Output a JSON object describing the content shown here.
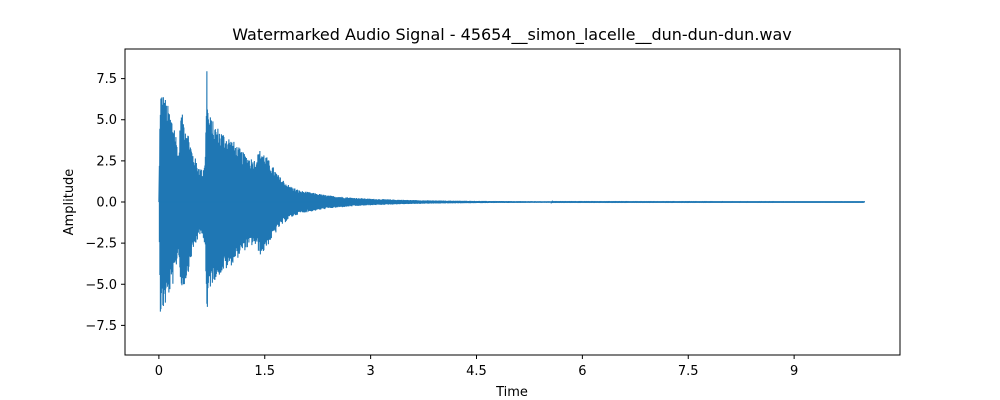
{
  "chart_data": {
    "type": "line",
    "title": "Watermarked Audio Signal - 45654__simon_lacelle__dun-dun-dun.wav",
    "xlabel": "Time",
    "ylabel": "Amplitude",
    "xlim": [
      -0.48,
      10.5
    ],
    "ylim": [
      -9.3,
      9.3
    ],
    "x_ticks": [
      0,
      1.5,
      3,
      4.5,
      6,
      7.5,
      9
    ],
    "x_tick_labels": [
      "0",
      "1.5",
      "3",
      "4.5",
      "6",
      "7.5",
      "9"
    ],
    "y_ticks": [
      -7.5,
      -5.0,
      -2.5,
      0.0,
      2.5,
      5.0,
      7.5
    ],
    "y_tick_labels": [
      "−7.5",
      "−5.0",
      "−2.5",
      "0.0",
      "2.5",
      "5.0",
      "7.5"
    ],
    "grid": false,
    "line_color": "#1f77b4",
    "duration": 10.0,
    "series": [
      {
        "values_kind": "envelope",
        "envelope_points": [
          [
            0.0,
            0.0
          ],
          [
            0.02,
            6.9
          ],
          [
            0.08,
            6.5
          ],
          [
            0.15,
            5.6
          ],
          [
            0.22,
            4.8
          ],
          [
            0.28,
            3.0
          ],
          [
            0.31,
            5.5
          ],
          [
            0.36,
            5.1
          ],
          [
            0.4,
            4.6
          ],
          [
            0.47,
            3.2
          ],
          [
            0.55,
            2.3
          ],
          [
            0.62,
            1.9
          ],
          [
            0.66,
            3.0
          ],
          [
            0.68,
            8.5
          ],
          [
            0.7,
            5.5
          ],
          [
            0.78,
            4.8
          ],
          [
            0.9,
            4.3
          ],
          [
            1.0,
            4.0
          ],
          [
            1.1,
            3.5
          ],
          [
            1.2,
            3.0
          ],
          [
            1.35,
            2.6
          ],
          [
            1.45,
            3.3
          ],
          [
            1.55,
            2.6
          ],
          [
            1.7,
            1.6
          ],
          [
            1.85,
            1.0
          ],
          [
            2.0,
            0.7
          ],
          [
            2.2,
            0.55
          ],
          [
            2.4,
            0.4
          ],
          [
            2.7,
            0.28
          ],
          [
            3.0,
            0.2
          ],
          [
            3.4,
            0.14
          ],
          [
            3.8,
            0.1
          ],
          [
            4.2,
            0.08
          ],
          [
            4.6,
            0.06
          ],
          [
            5.0,
            0.05
          ],
          [
            5.55,
            0.04
          ],
          [
            5.58,
            0.01
          ],
          [
            10.0,
            0.008
          ]
        ]
      }
    ]
  }
}
